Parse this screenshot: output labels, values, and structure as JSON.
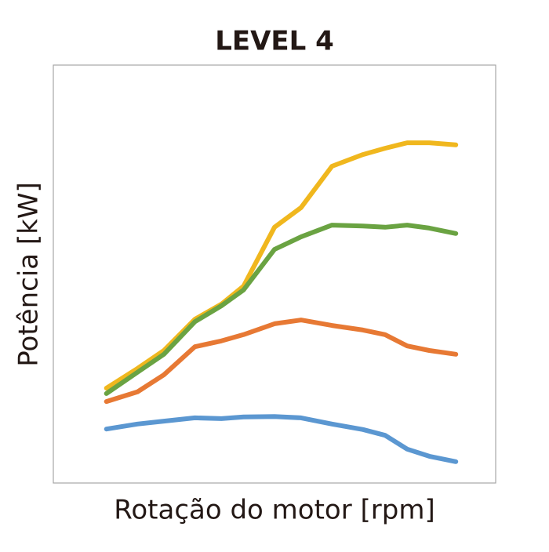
{
  "chart_data": {
    "type": "line",
    "title": "LEVEL 4",
    "x_label": "Rotação do motor [rpm]",
    "y_label": "Potência [kW]",
    "x": [
      12,
      19,
      25,
      32,
      38,
      43,
      50,
      56,
      63,
      70,
      75,
      80,
      85,
      91
    ],
    "xlim": [
      0,
      100
    ],
    "ylim": [
      0,
      100
    ],
    "grid": false,
    "series": [
      {
        "color": "#f0b71e",
        "values": [
          22.7,
          27.4,
          31.7,
          39.2,
          42.8,
          47.1,
          61.2,
          65.9,
          75.8,
          78.6,
          80.1,
          81.4,
          81.4,
          80.9
        ]
      },
      {
        "color": "#6aa342",
        "values": [
          21.4,
          26.5,
          30.8,
          38.6,
          42.4,
          46.2,
          55.9,
          58.9,
          61.7,
          61.5,
          61.2,
          61.7,
          61.0,
          59.7
        ]
      },
      {
        "color": "#e77934",
        "values": [
          19.5,
          21.8,
          25.9,
          32.6,
          34.0,
          35.5,
          38.1,
          39.0,
          37.7,
          36.6,
          35.5,
          32.8,
          31.7,
          30.8
        ]
      },
      {
        "color": "#5b97d1",
        "values": [
          12.9,
          14.1,
          14.8,
          15.6,
          15.4,
          15.8,
          15.9,
          15.6,
          14.1,
          12.8,
          11.4,
          8.1,
          6.4,
          5.1
        ]
      }
    ]
  }
}
